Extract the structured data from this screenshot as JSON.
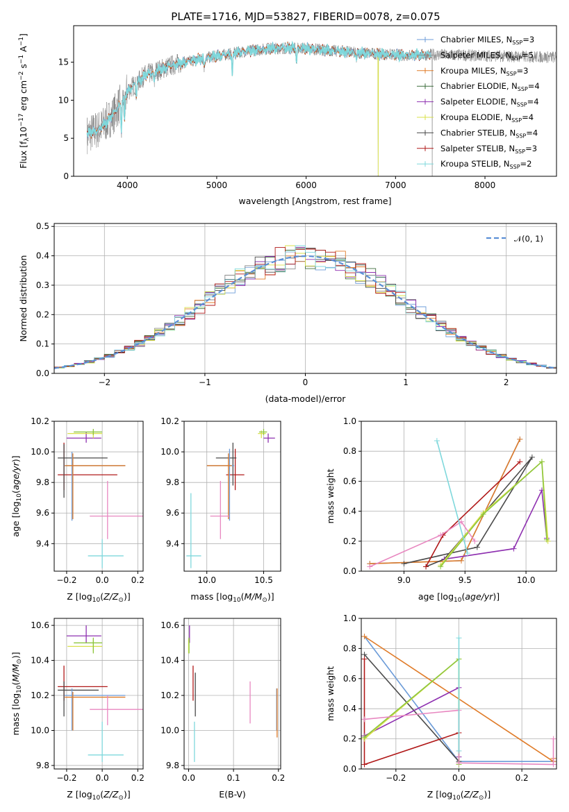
{
  "title": "PLATE=1716, MJD=53827, FIBERID=0078, z=0.075",
  "chart_data": [
    {
      "id": "spectrum",
      "type": "line",
      "xlabel": "wavelength [Angstrom, rest frame]",
      "ylabel_parts": [
        "Flux [f",
        "λ",
        "10",
        "−17",
        " erg cm",
        "−2",
        " s",
        "−1",
        " A",
        "−1",
        "]"
      ],
      "xlim": [
        3400,
        8800
      ],
      "ylim": [
        0,
        19.8
      ],
      "xticks": [
        4000,
        5000,
        6000,
        7000,
        8000
      ],
      "yticks": [
        0,
        5,
        10,
        15
      ],
      "grid": false,
      "legend_position": "upper-right",
      "legend": [
        {
          "base": "Chabrier MILES, N",
          "sub": "SSP",
          "tail": "=3",
          "color": "#6b9bd8"
        },
        {
          "base": "Salpeter MILES, N",
          "sub": "SSP",
          "tail": "=5",
          "color": "#8a8a8a"
        },
        {
          "base": "Kroupa MILES, N",
          "sub": "SSP",
          "tail": "=3",
          "color": "#e07b28"
        },
        {
          "base": "Chabrier ELODIE, N",
          "sub": "SSP",
          "tail": "=4",
          "color": "#3d6e3d"
        },
        {
          "base": "Salpeter ELODIE, N",
          "sub": "SSP",
          "tail": "=4",
          "color": "#8e30b0"
        },
        {
          "base": "Kroupa ELODIE, N",
          "sub": "SSP",
          "tail": "=4",
          "color": "#d8e04a"
        },
        {
          "base": "Chabrier STELIB, N",
          "sub": "SSP",
          "tail": "=4",
          "color": "#4a4a4a"
        },
        {
          "base": "Salpeter STELIB, N",
          "sub": "SSP",
          "tail": "=3",
          "color": "#b01818"
        },
        {
          "base": "Kroupa STELIB, N",
          "sub": "SSP",
          "tail": "=2",
          "color": "#7fd8dc"
        }
      ],
      "continuum": {
        "x": [
          3550,
          3700,
          3850,
          4000,
          4200,
          4500,
          4800,
          5000,
          5300,
          5600,
          5900,
          6200,
          6500,
          6800,
          7100,
          7400
        ],
        "y": [
          5.5,
          6.3,
          8.2,
          11.2,
          13.3,
          14.6,
          15.4,
          15.8,
          16.4,
          16.8,
          16.9,
          16.6,
          16.3,
          16.1,
          15.9,
          16.0
        ]
      },
      "model_end": 7400,
      "data_end": 8800,
      "absorption": [
        {
          "x": 3934,
          "d": 3.5
        },
        {
          "x": 3969,
          "d": 3.0
        },
        {
          "x": 4102,
          "d": 1.5
        },
        {
          "x": 4300,
          "d": 1.5
        },
        {
          "x": 4861,
          "d": 1.2
        },
        {
          "x": 5175,
          "d": 2.5
        },
        {
          "x": 5893,
          "d": 1.8
        },
        {
          "x": 6563,
          "d": 0.8
        }
      ],
      "spikes": [
        {
          "x": 6805,
          "y": 0
        },
        {
          "x": 7410,
          "y": 0
        }
      ]
    },
    {
      "id": "residuals",
      "type": "step",
      "xlabel": "(data-model)/error",
      "ylabel": "Normed distribution",
      "xlim": [
        -2.5,
        2.5
      ],
      "ylim": [
        0,
        0.51
      ],
      "xticks": [
        -2,
        -1,
        0,
        1,
        2
      ],
      "yticks": [
        0.0,
        0.1,
        0.2,
        0.3,
        0.4,
        0.5
      ],
      "grid": true,
      "legend_position": "upper-right",
      "gaussian_label": "𝒩(0, 1)",
      "gaussian": {
        "mean": 0,
        "sigma": 1,
        "color": "#5b8fd6"
      },
      "bin_width": 0.1
    },
    {
      "id": "age-vs-Z",
      "type": "errorbar",
      "xlabel_parts": [
        "Z [log",
        "10",
        "(",
        "Z/Z",
        "⊙",
        ")]"
      ],
      "ylabel_parts": [
        "age  [log",
        "10",
        "(",
        "age/yr",
        ")]"
      ],
      "xlim": [
        -0.27,
        0.23
      ],
      "ylim": [
        9.22,
        10.2
      ],
      "xticks": [
        -0.2,
        0.0,
        0.2
      ],
      "yticks": [
        9.4,
        9.6,
        9.8,
        10.0,
        10.2
      ],
      "grid": true,
      "points": [
        {
          "color": "#b01818",
          "x": -0.215,
          "y": 9.85,
          "xlo": -0.25,
          "xhi": 0.085,
          "ylo": 9.75,
          "yhi": 10.06
        },
        {
          "color": "#4a4a4a",
          "x": -0.215,
          "y": 9.96,
          "xlo": -0.25,
          "xhi": 0.03,
          "ylo": 9.7,
          "yhi": 10.05
        },
        {
          "color": "#6b9bd8",
          "x": -0.17,
          "y": 9.91,
          "xlo": -0.21,
          "xhi": 0.13,
          "ylo": 9.55,
          "yhi": 10.0
        },
        {
          "color": "#e07b28",
          "x": -0.165,
          "y": 9.91,
          "xlo": -0.21,
          "xhi": 0.13,
          "ylo": 9.56,
          "yhi": 9.99
        },
        {
          "color": "#8e30b0",
          "x": -0.09,
          "y": 10.09,
          "xlo": -0.2,
          "xhi": -0.005,
          "ylo": 10.06,
          "yhi": 10.13
        },
        {
          "color": "#d8e04a",
          "x": -0.05,
          "y": 10.12,
          "xlo": -0.195,
          "xhi": 0.0,
          "ylo": 10.09,
          "yhi": 10.14
        },
        {
          "color": "#8ec63f",
          "x": -0.05,
          "y": 10.13,
          "xlo": -0.16,
          "xhi": 0.0,
          "ylo": 10.11,
          "yhi": 10.15
        },
        {
          "color": "#e887c0",
          "x": 0.03,
          "y": 9.58,
          "xlo": -0.07,
          "xhi": 0.24,
          "ylo": 9.43,
          "yhi": 9.81
        },
        {
          "color": "#7fd8dc",
          "x": 0.0,
          "y": 9.32,
          "xlo": -0.08,
          "xhi": 0.12,
          "ylo": 9.24,
          "yhi": 9.43
        }
      ]
    },
    {
      "id": "age-vs-mass",
      "type": "errorbar",
      "xlabel_parts": [
        "mass [log",
        "10",
        "(",
        "M/M",
        "⊙",
        ")]"
      ],
      "xlim": [
        9.8,
        10.65
      ],
      "ylim": [
        9.22,
        10.2
      ],
      "xticks": [
        10.0,
        10.5
      ],
      "yticks": [
        9.4,
        9.6,
        9.8,
        10.0,
        10.2
      ],
      "grid": true,
      "points": [
        {
          "color": "#b01818",
          "x": 10.25,
          "y": 9.85,
          "xlo": 10.17,
          "xhi": 10.33,
          "ylo": 9.75,
          "yhi": 10.02
        },
        {
          "color": "#4a4a4a",
          "x": 10.23,
          "y": 9.96,
          "xlo": 10.08,
          "xhi": 10.26,
          "ylo": 9.78,
          "yhi": 10.06
        },
        {
          "color": "#6b9bd8",
          "x": 10.2,
          "y": 9.91,
          "xlo": 10.0,
          "xhi": 10.24,
          "ylo": 9.55,
          "yhi": 10.02
        },
        {
          "color": "#e07b28",
          "x": 10.19,
          "y": 9.91,
          "xlo": 10.0,
          "xhi": 10.22,
          "ylo": 9.56,
          "yhi": 9.99
        },
        {
          "color": "#8e30b0",
          "x": 10.54,
          "y": 10.09,
          "xlo": 10.5,
          "xhi": 10.6,
          "ylo": 10.06,
          "yhi": 10.12
        },
        {
          "color": "#d8e04a",
          "x": 10.48,
          "y": 10.12,
          "xlo": 10.45,
          "xhi": 10.52,
          "ylo": 10.09,
          "yhi": 10.14
        },
        {
          "color": "#8ec63f",
          "x": 10.5,
          "y": 10.13,
          "xlo": 10.46,
          "xhi": 10.53,
          "ylo": 10.11,
          "yhi": 10.15
        },
        {
          "color": "#e887c0",
          "x": 10.12,
          "y": 9.58,
          "xlo": 10.03,
          "xhi": 10.2,
          "ylo": 9.43,
          "yhi": 9.81
        },
        {
          "color": "#7fd8dc",
          "x": 9.86,
          "y": 9.32,
          "xlo": 9.82,
          "xhi": 9.95,
          "ylo": 9.24,
          "yhi": 9.73
        }
      ]
    },
    {
      "id": "mass-weight-vs-age",
      "type": "line",
      "xlabel_parts": [
        "age  [log",
        "10",
        "(",
        "age/yr",
        ")]"
      ],
      "ylabel": "mass weight",
      "xlim": [
        8.65,
        10.25
      ],
      "ylim": [
        0,
        1.0
      ],
      "xticks": [
        9.0,
        9.5,
        10.0
      ],
      "yticks": [
        0.0,
        0.2,
        0.4,
        0.6,
        0.8,
        1.0
      ],
      "grid": true,
      "series": [
        {
          "color": "#6b9bd8",
          "x": [
            8.72,
            9.47,
            9.95
          ],
          "y": [
            0.05,
            0.07,
            0.88
          ]
        },
        {
          "color": "#e07b28",
          "x": [
            8.72,
            9.47,
            9.95
          ],
          "y": [
            0.05,
            0.07,
            0.88
          ]
        },
        {
          "color": "#4a4a4a",
          "x": [
            9.0,
            9.6,
            10.05,
            9.33,
            9.18
          ],
          "y": [
            0.05,
            0.16,
            0.76,
            0.08,
            0.03
          ]
        },
        {
          "color": "#b01818",
          "x": [
            9.18,
            9.32,
            9.95
          ],
          "y": [
            0.03,
            0.24,
            0.73
          ]
        },
        {
          "color": "#8e30b0",
          "x": [
            9.33,
            9.9,
            10.13,
            10.17
          ],
          "y": [
            0.08,
            0.15,
            0.54,
            0.22
          ]
        },
        {
          "color": "#d8e04a",
          "x": [
            9.3,
            9.65,
            10.13,
            10.18
          ],
          "y": [
            0.04,
            0.39,
            0.73,
            0.2
          ]
        },
        {
          "color": "#8ec63f",
          "x": [
            9.3,
            9.65,
            10.13,
            10.17
          ],
          "y": [
            0.03,
            0.38,
            0.73,
            0.21
          ]
        },
        {
          "color": "#e887c0",
          "x": [
            8.72,
            9.3,
            9.47,
            9.58
          ],
          "y": [
            0.03,
            0.24,
            0.33,
            0.2
          ]
        },
        {
          "color": "#7fd8dc",
          "x": [
            9.27,
            9.52
          ],
          "y": [
            0.87,
            0.12
          ]
        }
      ]
    },
    {
      "id": "mass-vs-Z",
      "type": "errorbar",
      "xlabel_parts": [
        "Z [log",
        "10",
        "(",
        "Z/Z",
        "⊙",
        ")]"
      ],
      "ylabel_parts": [
        "mass [log",
        "10",
        "(",
        "M/M",
        "⊙",
        ")]"
      ],
      "xlim": [
        -0.27,
        0.23
      ],
      "ylim": [
        9.78,
        10.64
      ],
      "xticks": [
        -0.2,
        0.0,
        0.2
      ],
      "yticks": [
        9.8,
        10.0,
        10.2,
        10.4,
        10.6
      ],
      "grid": true,
      "points": [
        {
          "color": "#b01818",
          "x": -0.215,
          "y": 10.25,
          "xlo": -0.25,
          "xhi": 0.03,
          "ylo": 10.17,
          "yhi": 10.37
        },
        {
          "color": "#4a4a4a",
          "x": -0.215,
          "y": 10.23,
          "xlo": -0.25,
          "xhi": -0.02,
          "ylo": 10.08,
          "yhi": 10.28
        },
        {
          "color": "#6b9bd8",
          "x": -0.17,
          "y": 10.2,
          "xlo": -0.21,
          "xhi": 0.13,
          "ylo": 10.0,
          "yhi": 10.24
        },
        {
          "color": "#e07b28",
          "x": -0.165,
          "y": 10.19,
          "xlo": -0.21,
          "xhi": 0.13,
          "ylo": 10.0,
          "yhi": 10.22
        },
        {
          "color": "#8e30b0",
          "x": -0.09,
          "y": 10.54,
          "xlo": -0.2,
          "xhi": -0.005,
          "ylo": 10.5,
          "yhi": 10.6
        },
        {
          "color": "#d8e04a",
          "x": -0.05,
          "y": 10.48,
          "xlo": -0.195,
          "xhi": 0.0,
          "ylo": 10.45,
          "yhi": 10.52
        },
        {
          "color": "#8ec63f",
          "x": -0.05,
          "y": 10.5,
          "xlo": -0.16,
          "xhi": 0.0,
          "ylo": 10.44,
          "yhi": 10.53
        },
        {
          "color": "#e887c0",
          "x": 0.03,
          "y": 10.12,
          "xlo": -0.07,
          "xhi": 0.24,
          "ylo": 10.03,
          "yhi": 10.2
        },
        {
          "color": "#7fd8dc",
          "x": 0.0,
          "y": 9.86,
          "xlo": -0.08,
          "xhi": 0.12,
          "ylo": 9.82,
          "yhi": 10.05
        }
      ]
    },
    {
      "id": "mass-vs-EBV",
      "type": "errorbar",
      "xlabel": "E(B-V)",
      "xlim": [
        -0.01,
        0.205
      ],
      "ylim": [
        9.78,
        10.64
      ],
      "xticks": [
        0.0,
        0.1,
        0.2
      ],
      "yticks": [
        9.8,
        10.0,
        10.2,
        10.4,
        10.6
      ],
      "grid": true,
      "points": [
        {
          "color": "#b01818",
          "x": 0.01,
          "y": 10.25,
          "ylo": 10.17,
          "yhi": 10.37
        },
        {
          "color": "#4a4a4a",
          "x": 0.015,
          "y": 10.23,
          "ylo": 10.08,
          "yhi": 10.33
        },
        {
          "color": "#6b9bd8",
          "x": 0.196,
          "y": 10.2,
          "ylo": 10.0,
          "yhi": 10.24
        },
        {
          "color": "#e07b28",
          "x": 0.197,
          "y": 10.19,
          "ylo": 9.96,
          "yhi": 10.24
        },
        {
          "color": "#8e30b0",
          "x": 0.002,
          "y": 10.54,
          "ylo": 10.5,
          "yhi": 10.6
        },
        {
          "color": "#d8e04a",
          "x": 0.0,
          "y": 10.48,
          "ylo": 10.44,
          "yhi": 10.52
        },
        {
          "color": "#8ec63f",
          "x": 0.001,
          "y": 10.5,
          "ylo": 10.44,
          "yhi": 10.53
        },
        {
          "color": "#e887c0",
          "x": 0.137,
          "y": 10.12,
          "ylo": 10.04,
          "yhi": 10.28
        },
        {
          "color": "#7fd8dc",
          "x": 0.013,
          "y": 9.86,
          "ylo": 9.82,
          "yhi": 10.05
        }
      ]
    },
    {
      "id": "mass-weight-vs-Z",
      "type": "line",
      "xlabel_parts": [
        "Z [log",
        "10",
        "(",
        "Z/Z",
        "⊙",
        ")]"
      ],
      "ylabel": "mass weight",
      "xlim": [
        -0.31,
        0.31
      ],
      "ylim": [
        0,
        1.0
      ],
      "xticks": [
        -0.2,
        0.0,
        0.2
      ],
      "yticks": [
        0.0,
        0.2,
        0.4,
        0.6,
        0.8,
        1.0
      ],
      "grid": true,
      "series": [
        {
          "color": "#6b9bd8",
          "x": [
            -0.3,
            0.0,
            0.3
          ],
          "y": [
            0.88,
            0.05,
            0.05
          ]
        },
        {
          "color": "#e07b28",
          "x": [
            -0.3,
            0.3,
            0.3
          ],
          "y": [
            0.88,
            0.05,
            0.07
          ]
        },
        {
          "color": "#4a4a4a",
          "x": [
            -0.3,
            0.0,
            0.0
          ],
          "y": [
            0.76,
            0.05,
            0.04
          ]
        },
        {
          "color": "#b01818",
          "x": [
            -0.3,
            -0.3,
            0.0,
            -0.3
          ],
          "y": [
            0.73,
            0.03,
            0.24,
            0.03
          ]
        },
        {
          "color": "#8e30b0",
          "x": [
            -0.3,
            0.0,
            0.0
          ],
          "y": [
            0.22,
            0.54,
            0.08
          ]
        },
        {
          "color": "#d8e04a",
          "x": [
            -0.3,
            0.0,
            0.0
          ],
          "y": [
            0.2,
            0.73,
            0.04
          ]
        },
        {
          "color": "#8ec63f",
          "x": [
            -0.3,
            0.0,
            0.0
          ],
          "y": [
            0.21,
            0.73,
            0.03
          ]
        },
        {
          "color": "#e887c0",
          "x": [
            -0.3,
            0.0,
            0.0,
            0.3,
            0.3
          ],
          "y": [
            0.33,
            0.39,
            0.04,
            0.03,
            0.2
          ]
        },
        {
          "color": "#7fd8dc",
          "x": [
            0.0,
            0.0
          ],
          "y": [
            0.87,
            0.12
          ]
        }
      ]
    }
  ]
}
